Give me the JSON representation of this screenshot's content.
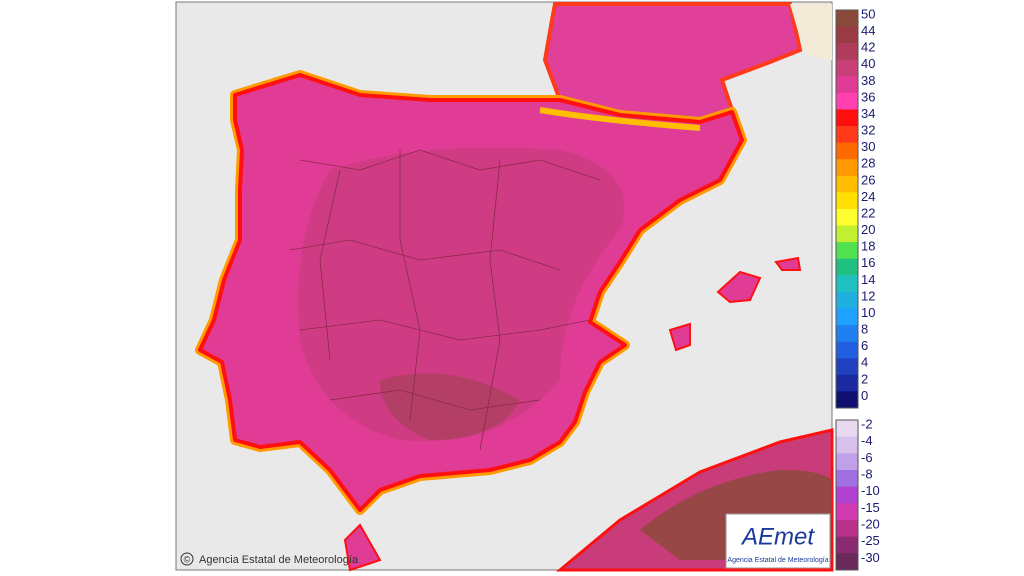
{
  "map": {
    "credit": {
      "symbol": "©",
      "text": "Agencia Estatal de Meteorología"
    },
    "logo": {
      "name": "AEmet",
      "subtitle": "Agencia Estatal de Meteorología"
    },
    "legend": {
      "groups": [
        {
          "items": [
            {
              "label": "50",
              "color": "#8a4a3a"
            },
            {
              "label": "44",
              "color": "#9a3a42"
            },
            {
              "label": "42",
              "color": "#b03c5c"
            },
            {
              "label": "40",
              "color": "#c84078"
            },
            {
              "label": "38",
              "color": "#e03c96"
            },
            {
              "label": "36",
              "color": "#ff40b0"
            },
            {
              "label": "34",
              "color": "#ff1010"
            },
            {
              "label": "32",
              "color": "#ff3a1a"
            },
            {
              "label": "30",
              "color": "#ff6a00"
            },
            {
              "label": "28",
              "color": "#ff9a00"
            },
            {
              "label": "26",
              "color": "#ffbe00"
            },
            {
              "label": "24",
              "color": "#ffe000"
            },
            {
              "label": "22",
              "color": "#ffff30"
            },
            {
              "label": "20",
              "color": "#c0f030"
            },
            {
              "label": "18",
              "color": "#50e050"
            },
            {
              "label": "16",
              "color": "#20c080"
            },
            {
              "label": "14",
              "color": "#20c0c0"
            },
            {
              "label": "12",
              "color": "#20b0e0"
            },
            {
              "label": "10",
              "color": "#20a0ff"
            },
            {
              "label": "8",
              "color": "#2080f0"
            },
            {
              "label": "6",
              "color": "#2060e0"
            },
            {
              "label": "4",
              "color": "#2040c0"
            },
            {
              "label": "2",
              "color": "#1a2aa0"
            },
            {
              "label": "0",
              "color": "#101070"
            }
          ]
        },
        {
          "items": [
            {
              "label": "-2",
              "color": "#e8d8f0"
            },
            {
              "label": "-4",
              "color": "#d8c0ec"
            },
            {
              "label": "-6",
              "color": "#c0a0e8"
            },
            {
              "label": "-8",
              "color": "#a070e0"
            },
            {
              "label": "-10",
              "color": "#b040d0"
            },
            {
              "label": "-15",
              "color": "#d03cb0"
            },
            {
              "label": "-20",
              "color": "#b8308a"
            },
            {
              "label": "-25",
              "color": "#8a2a70"
            },
            {
              "label": "-30",
              "color": "#6a2a5a"
            }
          ]
        }
      ]
    }
  }
}
